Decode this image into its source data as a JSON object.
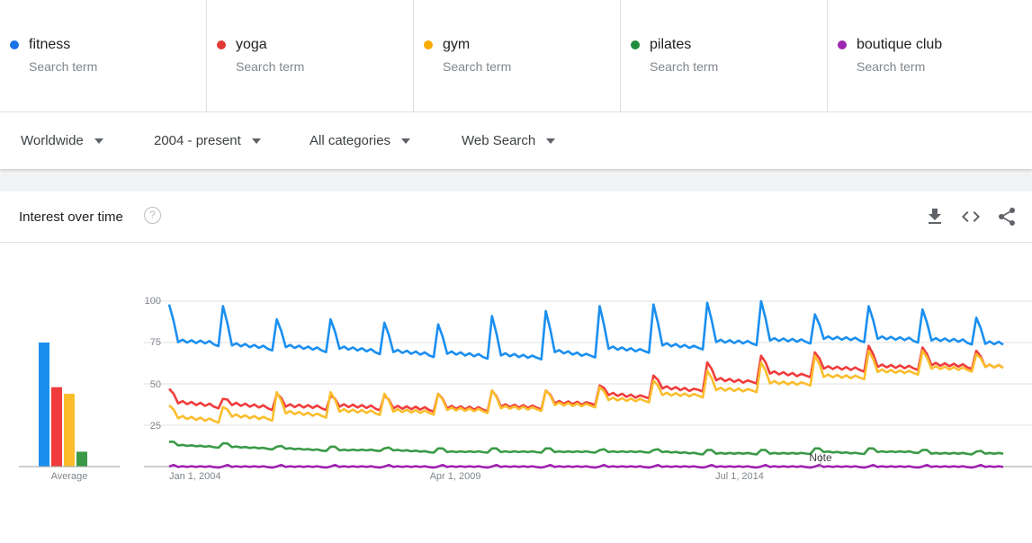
{
  "terms": [
    {
      "name": "fitness",
      "sub": "Search term",
      "color": "#1a73e8"
    },
    {
      "name": "yoga",
      "sub": "Search term",
      "color": "#e53935"
    },
    {
      "name": "gym",
      "sub": "Search term",
      "color": "#f9ab00"
    },
    {
      "name": "pilates",
      "sub": "Search term",
      "color": "#1e8e3e"
    },
    {
      "name": "boutique club",
      "sub": "Search term",
      "color": "#9c27b0"
    }
  ],
  "filters": {
    "region": "Worldwide",
    "period": "2004 - present",
    "category": "All categories",
    "search_type": "Web Search"
  },
  "card": {
    "title": "Interest over time",
    "help": "?",
    "icons": [
      "download-icon",
      "embed-icon",
      "share-icon"
    ]
  },
  "chart_data": [
    {
      "type": "bar",
      "categories": [
        "fitness",
        "yoga",
        "gym",
        "pilates",
        "boutique club"
      ],
      "values": [
        75,
        48,
        44,
        9,
        0
      ],
      "xlabel": "Average",
      "ylim": [
        0,
        100
      ],
      "colors": [
        "#1a8ff0",
        "#f03c3c",
        "#fbbd2c",
        "#3a9a47",
        "#a020b0"
      ]
    },
    {
      "type": "line",
      "x_ticks": [
        "Jan 1, 2004",
        "Apr 1, 2009",
        "Jul 1, 2014"
      ],
      "y_ticks": [
        "100",
        "75",
        "50",
        "25"
      ],
      "ylim": [
        0,
        100
      ],
      "annotation": "Note",
      "start_year": 2004,
      "end_year": 2019.5,
      "series": [
        {
          "name": "fitness",
          "color": "#1a8ff0",
          "yearly": [
            [
              76,
              75
            ],
            [
              74,
              72
            ],
            [
              73,
              71
            ],
            [
              72,
              70
            ],
            [
              70,
              68
            ],
            [
              69,
              67
            ],
            [
              68,
              66
            ],
            [
              70,
              67
            ],
            [
              72,
              70
            ],
            [
              74,
              72
            ],
            [
              76,
              75
            ],
            [
              77,
              76
            ],
            [
              78,
              77
            ],
            [
              78,
              77
            ],
            [
              77,
              76
            ],
            [
              75,
              74
            ]
          ],
          "peaks": [
            98,
            97,
            89,
            89,
            87,
            86,
            91,
            94,
            97,
            98,
            99,
            100,
            92,
            97,
            95,
            90
          ]
        },
        {
          "name": "yoga",
          "color": "#f03c3c",
          "yearly": [
            [
              39,
              37
            ],
            [
              38,
              36
            ],
            [
              37,
              36
            ],
            [
              37,
              36
            ],
            [
              36,
              35
            ],
            [
              36,
              35
            ],
            [
              37,
              36
            ],
            [
              39,
              38
            ],
            [
              44,
              42
            ],
            [
              48,
              46
            ],
            [
              53,
              51
            ],
            [
              57,
              55
            ],
            [
              60,
              59
            ],
            [
              61,
              60
            ],
            [
              62,
              61
            ],
            [
              61,
              60
            ]
          ],
          "peaks": [
            47,
            41,
            44,
            43,
            43,
            44,
            46,
            46,
            49,
            55,
            63,
            67,
            69,
            73,
            72,
            70
          ]
        },
        {
          "name": "gym",
          "color": "#fbbd2c",
          "yearly": [
            [
              30,
              28
            ],
            [
              31,
              29
            ],
            [
              33,
              31
            ],
            [
              34,
              33
            ],
            [
              34,
              33
            ],
            [
              35,
              34
            ],
            [
              36,
              35
            ],
            [
              38,
              37
            ],
            [
              41,
              40
            ],
            [
              44,
              43
            ],
            [
              47,
              46
            ],
            [
              51,
              50
            ],
            [
              55,
              54
            ],
            [
              58,
              57
            ],
            [
              60,
              59
            ],
            [
              61,
              60
            ]
          ],
          "peaks": [
            37,
            36,
            45,
            45,
            44,
            44,
            46,
            46,
            48,
            52,
            58,
            63,
            67,
            70,
            70,
            68
          ]
        },
        {
          "name": "pilates",
          "color": "#3a9a47",
          "yearly": [
            [
              13,
              12
            ],
            [
              12,
              11
            ],
            [
              11,
              10
            ],
            [
              10,
              10
            ],
            [
              10,
              9
            ],
            [
              9,
              9
            ],
            [
              9,
              9
            ],
            [
              9,
              9
            ],
            [
              9,
              9
            ],
            [
              9,
              8
            ],
            [
              8,
              8
            ],
            [
              8,
              8
            ],
            [
              9,
              8
            ],
            [
              9,
              9
            ],
            [
              8,
              8
            ],
            [
              8,
              8
            ]
          ],
          "peaks": [
            15,
            14,
            12,
            12,
            11,
            11,
            11,
            11,
            10,
            10,
            10,
            10,
            11,
            11,
            10,
            9
          ]
        },
        {
          "name": "boutique club",
          "color": "#a020b0",
          "yearly": [
            [
              0,
              0
            ],
            [
              0,
              0
            ],
            [
              0,
              0
            ],
            [
              0,
              0
            ],
            [
              0,
              0
            ],
            [
              0,
              0
            ],
            [
              0,
              0
            ],
            [
              0,
              0
            ],
            [
              0,
              0
            ],
            [
              0,
              0
            ],
            [
              0,
              0
            ],
            [
              0,
              0
            ],
            [
              0,
              0
            ],
            [
              0,
              0
            ],
            [
              0,
              0
            ],
            [
              0,
              0
            ]
          ],
          "peaks": [
            0,
            0,
            0,
            0,
            0,
            0,
            0,
            0,
            0,
            0,
            0,
            0,
            0,
            0,
            0,
            0
          ]
        }
      ]
    }
  ]
}
